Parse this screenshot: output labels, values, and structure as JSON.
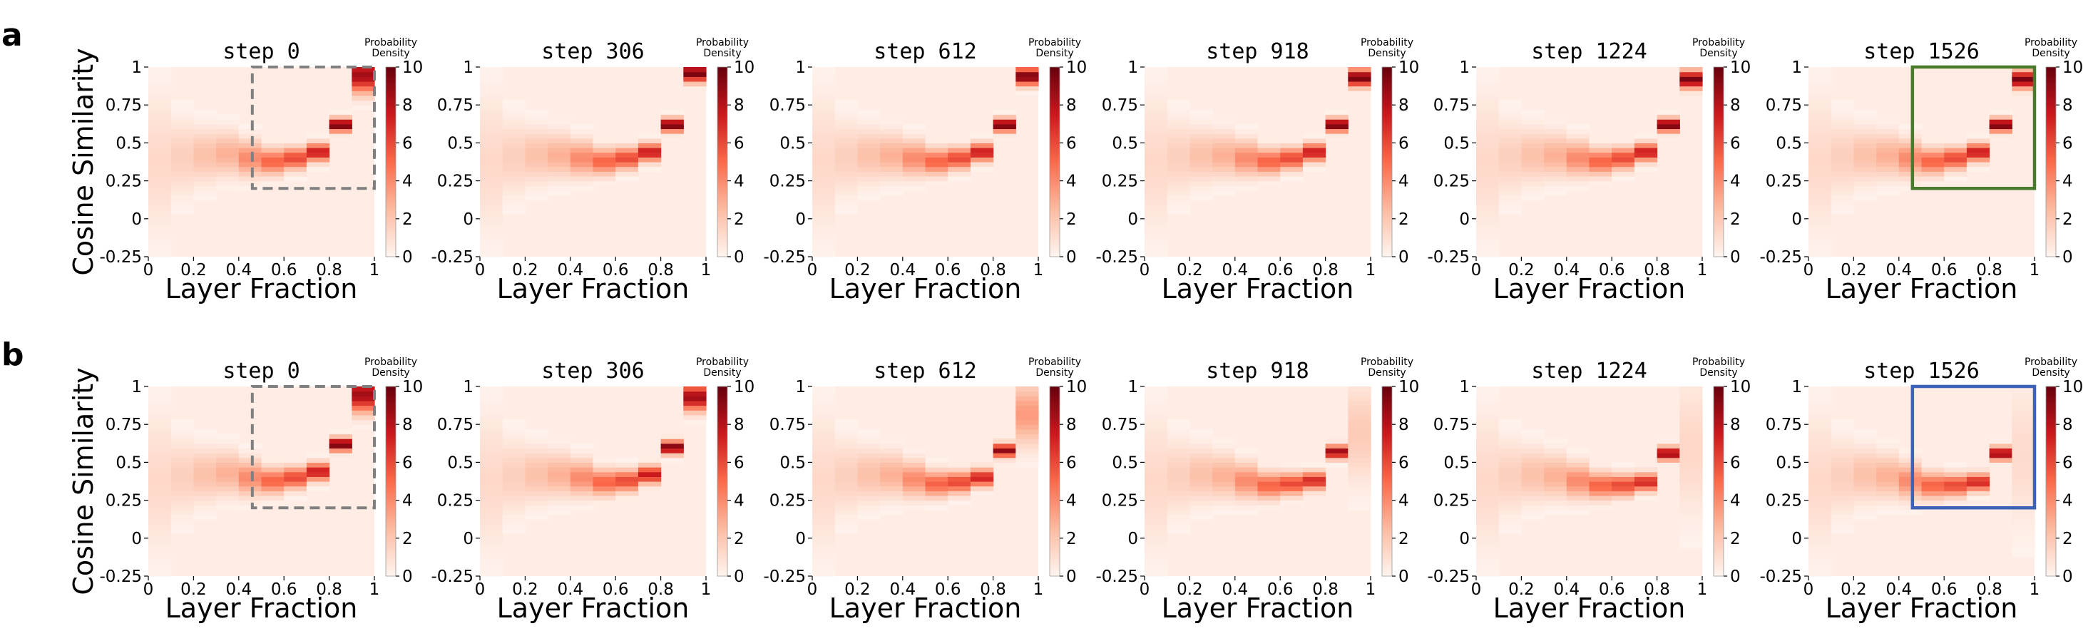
{
  "rows": [
    {
      "label": "a",
      "highlight": {
        "color": "#4a7a2e",
        "style": "solid"
      }
    },
    {
      "label": "b",
      "highlight": {
        "color": "#3d63b8",
        "style": "solid"
      }
    }
  ],
  "reference_box": {
    "color": "#808080",
    "style": "dashed"
  },
  "colormap": [
    "#fff5f0",
    "#fcbba1",
    "#fb6a4a",
    "#cb181d",
    "#67000d"
  ],
  "chart_data": {
    "type": "heatmap",
    "xlabel": "Layer Fraction",
    "ylabel": "Cosine Similarity",
    "colorbar_label": [
      "Probability",
      "Density"
    ],
    "xticks": [
      "0",
      "0.2",
      "0.4",
      "0.6",
      "0.8",
      "1"
    ],
    "xtick_values": [
      0,
      0.2,
      0.4,
      0.6,
      0.8,
      1
    ],
    "yticks": [
      "-0.25",
      "0",
      "0.25",
      "0.5",
      "0.75",
      "1"
    ],
    "ytick_values": [
      -0.25,
      0,
      0.25,
      0.5,
      0.75,
      1
    ],
    "xlim": [
      0,
      1
    ],
    "ylim": [
      -0.25,
      1
    ],
    "cticks": [
      "0",
      "2",
      "4",
      "6",
      "8",
      "10"
    ],
    "cbar_values": [
      0,
      2,
      4,
      6,
      8,
      10
    ],
    "clim": [
      0,
      10
    ],
    "highlight_region": {
      "x": [
        0.46,
        1.0
      ],
      "y": [
        0.2,
        1.0
      ]
    },
    "panels": [
      {
        "row": "a",
        "title": "step 0",
        "x": [
          0.05,
          0.15,
          0.25,
          0.35,
          0.45,
          0.55,
          0.65,
          0.75,
          0.85,
          0.95
        ],
        "y_mean": [
          0.38,
          0.41,
          0.42,
          0.43,
          0.4,
          0.38,
          0.4,
          0.44,
          0.62,
          0.95
        ],
        "peak": [
          1.2,
          1.6,
          2.2,
          2.8,
          4.0,
          5.2,
          6.0,
          7.5,
          9.8,
          8.5
        ],
        "spread": [
          0.3,
          0.16,
          0.12,
          0.1,
          0.08,
          0.06,
          0.05,
          0.04,
          0.03,
          0.08
        ],
        "boxed": "reference"
      },
      {
        "row": "a",
        "title": "step 306",
        "x": [
          0.05,
          0.15,
          0.25,
          0.35,
          0.45,
          0.55,
          0.65,
          0.75,
          0.85,
          0.95
        ],
        "y_mean": [
          0.38,
          0.41,
          0.42,
          0.42,
          0.4,
          0.38,
          0.4,
          0.44,
          0.62,
          0.96
        ],
        "peak": [
          1.2,
          1.6,
          2.2,
          2.8,
          4.0,
          5.2,
          6.0,
          7.5,
          9.8,
          9.6
        ],
        "spread": [
          0.3,
          0.16,
          0.12,
          0.1,
          0.08,
          0.06,
          0.05,
          0.04,
          0.03,
          0.04
        ],
        "boxed": "none"
      },
      {
        "row": "a",
        "title": "step 612",
        "x": [
          0.05,
          0.15,
          0.25,
          0.35,
          0.45,
          0.55,
          0.65,
          0.75,
          0.85,
          0.95
        ],
        "y_mean": [
          0.38,
          0.41,
          0.42,
          0.42,
          0.4,
          0.38,
          0.4,
          0.44,
          0.62,
          0.94
        ],
        "peak": [
          1.2,
          1.6,
          2.2,
          2.8,
          4.0,
          5.2,
          6.0,
          7.5,
          9.8,
          9.6
        ],
        "spread": [
          0.3,
          0.16,
          0.12,
          0.1,
          0.08,
          0.06,
          0.05,
          0.04,
          0.03,
          0.04
        ],
        "boxed": "none"
      },
      {
        "row": "a",
        "title": "step 918",
        "x": [
          0.05,
          0.15,
          0.25,
          0.35,
          0.45,
          0.55,
          0.65,
          0.75,
          0.85,
          0.95
        ],
        "y_mean": [
          0.38,
          0.41,
          0.42,
          0.42,
          0.4,
          0.38,
          0.4,
          0.44,
          0.62,
          0.93
        ],
        "peak": [
          1.2,
          1.6,
          2.2,
          2.8,
          4.0,
          5.2,
          6.0,
          7.5,
          9.8,
          9.6
        ],
        "spread": [
          0.3,
          0.16,
          0.12,
          0.1,
          0.08,
          0.06,
          0.05,
          0.04,
          0.03,
          0.04
        ],
        "boxed": "none"
      },
      {
        "row": "a",
        "title": "step 1224",
        "x": [
          0.05,
          0.15,
          0.25,
          0.35,
          0.45,
          0.55,
          0.65,
          0.75,
          0.85,
          0.95
        ],
        "y_mean": [
          0.38,
          0.41,
          0.42,
          0.42,
          0.4,
          0.38,
          0.4,
          0.44,
          0.62,
          0.92
        ],
        "peak": [
          1.2,
          1.6,
          2.2,
          2.8,
          4.0,
          5.2,
          6.0,
          7.5,
          9.8,
          9.6
        ],
        "spread": [
          0.3,
          0.16,
          0.12,
          0.1,
          0.08,
          0.06,
          0.05,
          0.04,
          0.03,
          0.04
        ],
        "boxed": "none"
      },
      {
        "row": "a",
        "title": "step 1526",
        "x": [
          0.05,
          0.15,
          0.25,
          0.35,
          0.45,
          0.55,
          0.65,
          0.75,
          0.85,
          0.95
        ],
        "y_mean": [
          0.38,
          0.41,
          0.42,
          0.42,
          0.4,
          0.38,
          0.4,
          0.44,
          0.62,
          0.92
        ],
        "peak": [
          1.2,
          1.6,
          2.2,
          2.8,
          4.0,
          5.2,
          6.0,
          7.5,
          9.8,
          9.6
        ],
        "spread": [
          0.3,
          0.16,
          0.12,
          0.1,
          0.08,
          0.06,
          0.05,
          0.04,
          0.03,
          0.04
        ],
        "boxed": "highlight"
      },
      {
        "row": "b",
        "title": "step 0",
        "x": [
          0.05,
          0.15,
          0.25,
          0.35,
          0.45,
          0.55,
          0.65,
          0.75,
          0.85,
          0.95
        ],
        "y_mean": [
          0.38,
          0.41,
          0.42,
          0.43,
          0.4,
          0.38,
          0.4,
          0.44,
          0.62,
          0.95
        ],
        "peak": [
          1.2,
          1.6,
          2.2,
          2.8,
          4.0,
          5.2,
          6.0,
          7.5,
          9.8,
          8.5
        ],
        "spread": [
          0.3,
          0.16,
          0.12,
          0.1,
          0.08,
          0.06,
          0.05,
          0.04,
          0.03,
          0.08
        ],
        "boxed": "reference"
      },
      {
        "row": "b",
        "title": "step 306",
        "x": [
          0.05,
          0.15,
          0.25,
          0.35,
          0.45,
          0.55,
          0.65,
          0.75,
          0.85,
          0.95
        ],
        "y_mean": [
          0.38,
          0.41,
          0.42,
          0.42,
          0.4,
          0.37,
          0.38,
          0.42,
          0.6,
          0.93
        ],
        "peak": [
          1.2,
          1.6,
          2.2,
          2.8,
          4.0,
          5.2,
          6.0,
          7.5,
          9.5,
          8.5
        ],
        "spread": [
          0.3,
          0.16,
          0.12,
          0.1,
          0.08,
          0.06,
          0.05,
          0.04,
          0.03,
          0.06
        ],
        "boxed": "none"
      },
      {
        "row": "b",
        "title": "step 612",
        "x": [
          0.05,
          0.15,
          0.25,
          0.35,
          0.45,
          0.55,
          0.65,
          0.75,
          0.85,
          0.95
        ],
        "y_mean": [
          0.38,
          0.41,
          0.42,
          0.42,
          0.39,
          0.36,
          0.37,
          0.4,
          0.58,
          0.82
        ],
        "peak": [
          1.2,
          1.6,
          2.2,
          2.8,
          4.0,
          5.2,
          6.0,
          7.2,
          9.0,
          3.5
        ],
        "spread": [
          0.3,
          0.16,
          0.12,
          0.1,
          0.08,
          0.06,
          0.05,
          0.04,
          0.03,
          0.14
        ],
        "boxed": "none"
      },
      {
        "row": "b",
        "title": "step 918",
        "x": [
          0.05,
          0.15,
          0.25,
          0.35,
          0.45,
          0.55,
          0.65,
          0.75,
          0.85,
          0.95
        ],
        "y_mean": [
          0.38,
          0.41,
          0.42,
          0.41,
          0.38,
          0.35,
          0.36,
          0.38,
          0.57,
          0.7
        ],
        "peak": [
          1.2,
          1.6,
          2.2,
          2.8,
          4.0,
          5.2,
          6.0,
          7.0,
          8.8,
          1.8
        ],
        "spread": [
          0.3,
          0.16,
          0.12,
          0.1,
          0.08,
          0.06,
          0.05,
          0.04,
          0.03,
          0.22
        ],
        "boxed": "none"
      },
      {
        "row": "b",
        "title": "step 1224",
        "x": [
          0.05,
          0.15,
          0.25,
          0.35,
          0.45,
          0.55,
          0.65,
          0.75,
          0.85,
          0.95
        ],
        "y_mean": [
          0.38,
          0.41,
          0.42,
          0.41,
          0.38,
          0.35,
          0.35,
          0.37,
          0.56,
          0.6
        ],
        "peak": [
          1.2,
          1.6,
          2.2,
          2.8,
          4.0,
          5.2,
          6.0,
          7.0,
          8.8,
          1.3
        ],
        "spread": [
          0.3,
          0.16,
          0.12,
          0.1,
          0.08,
          0.06,
          0.05,
          0.04,
          0.03,
          0.3
        ],
        "boxed": "none"
      },
      {
        "row": "b",
        "title": "step 1526",
        "x": [
          0.05,
          0.15,
          0.25,
          0.35,
          0.45,
          0.55,
          0.65,
          0.75,
          0.85,
          0.95
        ],
        "y_mean": [
          0.38,
          0.41,
          0.42,
          0.41,
          0.38,
          0.35,
          0.35,
          0.37,
          0.56,
          0.55
        ],
        "peak": [
          1.2,
          1.6,
          2.2,
          2.8,
          4.0,
          5.2,
          6.0,
          7.0,
          8.8,
          1.1
        ],
        "spread": [
          0.3,
          0.16,
          0.12,
          0.1,
          0.08,
          0.06,
          0.05,
          0.04,
          0.03,
          0.32
        ],
        "boxed": "highlight"
      }
    ]
  }
}
